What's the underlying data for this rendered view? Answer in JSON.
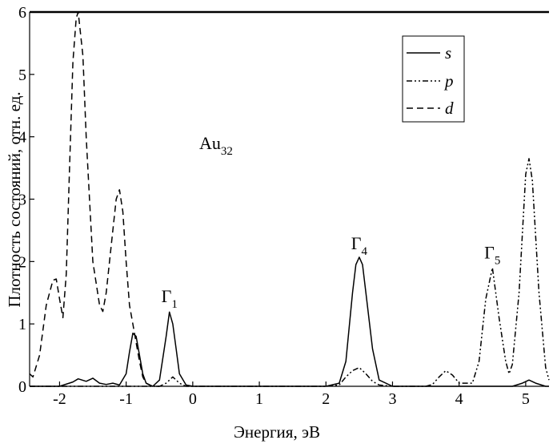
{
  "chart_data": {
    "type": "line",
    "title": "",
    "xlabel": "Энергия, эВ",
    "ylabel": "Плотность состояний, отн. ед.",
    "xlim": [
      -2.45,
      5.35
    ],
    "ylim": [
      0,
      6
    ],
    "x_ticks": [
      "-2",
      "-1",
      "0",
      "1",
      "2",
      "3",
      "4",
      "5"
    ],
    "x_tick_values": [
      -2,
      -1,
      0,
      1,
      2,
      3,
      4,
      5
    ],
    "y_ticks": [
      "0",
      "1",
      "2",
      "3",
      "4",
      "5",
      "6"
    ],
    "y_tick_values": [
      0,
      1,
      2,
      3,
      4,
      5,
      6
    ],
    "grid": false,
    "legend_position": "top-right",
    "annotations": [
      {
        "main": "Au",
        "sub": "32",
        "x": 0.35,
        "y": 3.8
      },
      {
        "main": "Γ",
        "sub": "1",
        "x": -0.35,
        "y": 1.35
      },
      {
        "main": "Γ",
        "sub": "4",
        "x": 2.5,
        "y": 2.2
      },
      {
        "main": "Γ",
        "sub": "5",
        "x": 4.5,
        "y": 2.05
      }
    ],
    "series": [
      {
        "name": "s",
        "style": "solid",
        "x": [
          -2.45,
          -2.0,
          -1.8,
          -1.72,
          -1.6,
          -1.5,
          -1.4,
          -1.3,
          -1.2,
          -1.1,
          -1.0,
          -0.95,
          -0.9,
          -0.85,
          -0.8,
          -0.75,
          -0.7,
          -0.6,
          -0.5,
          -0.4,
          -0.35,
          -0.3,
          -0.25,
          -0.2,
          -0.1,
          0.0,
          2.0,
          2.2,
          2.3,
          2.4,
          2.45,
          2.5,
          2.55,
          2.6,
          2.7,
          2.8,
          3.0,
          4.8,
          4.95,
          5.05,
          5.15,
          5.3,
          5.35
        ],
        "y": [
          0,
          0,
          0.07,
          0.12,
          0.08,
          0.13,
          0.05,
          0.03,
          0.05,
          0.02,
          0.2,
          0.55,
          0.85,
          0.8,
          0.5,
          0.2,
          0.05,
          0.0,
          0.1,
          0.8,
          1.19,
          1.0,
          0.6,
          0.2,
          0.02,
          0,
          0,
          0.05,
          0.4,
          1.5,
          1.95,
          2.07,
          1.95,
          1.5,
          0.6,
          0.1,
          0,
          0,
          0.05,
          0.1,
          0.05,
          0,
          0
        ]
      },
      {
        "name": "p",
        "style": "dash-dot-dot",
        "x": [
          -2.45,
          -0.5,
          -0.4,
          -0.3,
          -0.2,
          -0.1,
          2.0,
          2.2,
          2.3,
          2.4,
          2.5,
          2.6,
          2.7,
          2.8,
          3.0,
          3.5,
          3.6,
          3.7,
          3.8,
          3.9,
          4.0,
          4.2,
          4.3,
          4.35,
          4.4,
          4.5,
          4.6,
          4.7,
          4.75,
          4.8,
          4.9,
          5.0,
          5.05,
          5.1,
          5.2,
          5.3,
          5.35
        ],
        "y": [
          0,
          0,
          0.05,
          0.15,
          0.05,
          0,
          0,
          0.02,
          0.15,
          0.25,
          0.3,
          0.2,
          0.08,
          0.02,
          0,
          0,
          0.03,
          0.15,
          0.25,
          0.18,
          0.05,
          0.05,
          0.4,
          0.9,
          1.4,
          1.9,
          1.1,
          0.4,
          0.2,
          0.35,
          1.5,
          3.4,
          3.65,
          3.3,
          1.5,
          0.3,
          0.1
        ]
      },
      {
        "name": "d",
        "style": "dashed",
        "x": [
          -2.45,
          -2.4,
          -2.3,
          -2.2,
          -2.1,
          -2.05,
          -2.0,
          -1.95,
          -1.9,
          -1.85,
          -1.8,
          -1.75,
          -1.72,
          -1.65,
          -1.6,
          -1.5,
          -1.4,
          -1.35,
          -1.3,
          -1.2,
          -1.15,
          -1.1,
          -1.05,
          -1.0,
          -0.95,
          -0.9,
          -0.85,
          -0.8,
          -0.75,
          -0.7,
          -0.65,
          -0.6,
          -0.55,
          -0.5
        ],
        "y": [
          0.2,
          0.15,
          0.5,
          1.3,
          1.7,
          1.72,
          1.4,
          1.1,
          1.8,
          3.5,
          5.2,
          5.9,
          6.0,
          5.3,
          4.0,
          2.0,
          1.3,
          1.2,
          1.5,
          2.5,
          3.0,
          3.15,
          2.8,
          2.0,
          1.3,
          1.0,
          0.7,
          0.4,
          0.15,
          0.05,
          0.02,
          0.0,
          0.0,
          0.0
        ]
      }
    ]
  }
}
